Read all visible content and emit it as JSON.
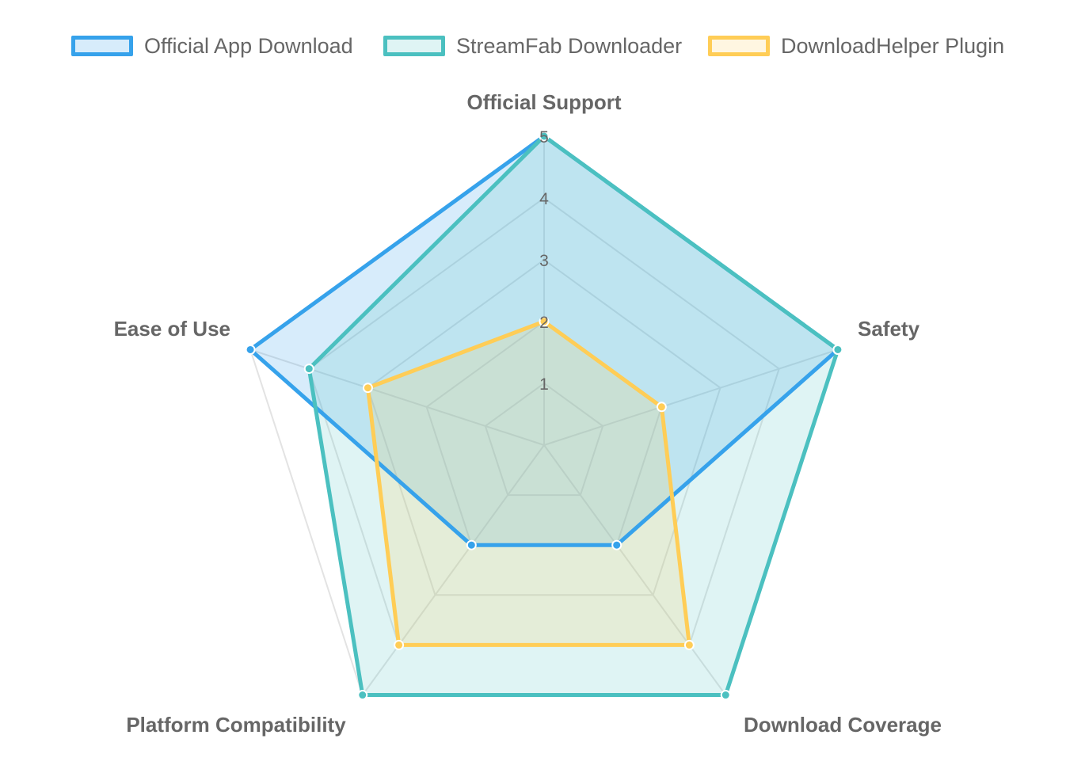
{
  "chart_data": {
    "type": "radar",
    "axes": [
      "Official Support",
      "Safety",
      "Download Coverage",
      "Platform Compatibility",
      "Ease of Use"
    ],
    "r_range": [
      0,
      5
    ],
    "ticks": [
      "1",
      "2",
      "3",
      "4",
      "5"
    ],
    "legend_position": "top",
    "grid": true,
    "series": [
      {
        "name": "Official App Download",
        "values": [
          5,
          5,
          2,
          2,
          5
        ],
        "color": "#36a2eb",
        "fill": "rgba(54,162,235,0.2)"
      },
      {
        "name": "StreamFab Downloader",
        "values": [
          5,
          5,
          5,
          5,
          4
        ],
        "color": "#4bc0c0",
        "fill": "rgba(75,192,192,0.18)"
      },
      {
        "name": "DownloadHelper Plugin",
        "values": [
          2,
          2,
          4,
          4,
          3
        ],
        "color": "#ffcd56",
        "fill": "rgba(255,205,86,0.18)"
      }
    ]
  }
}
